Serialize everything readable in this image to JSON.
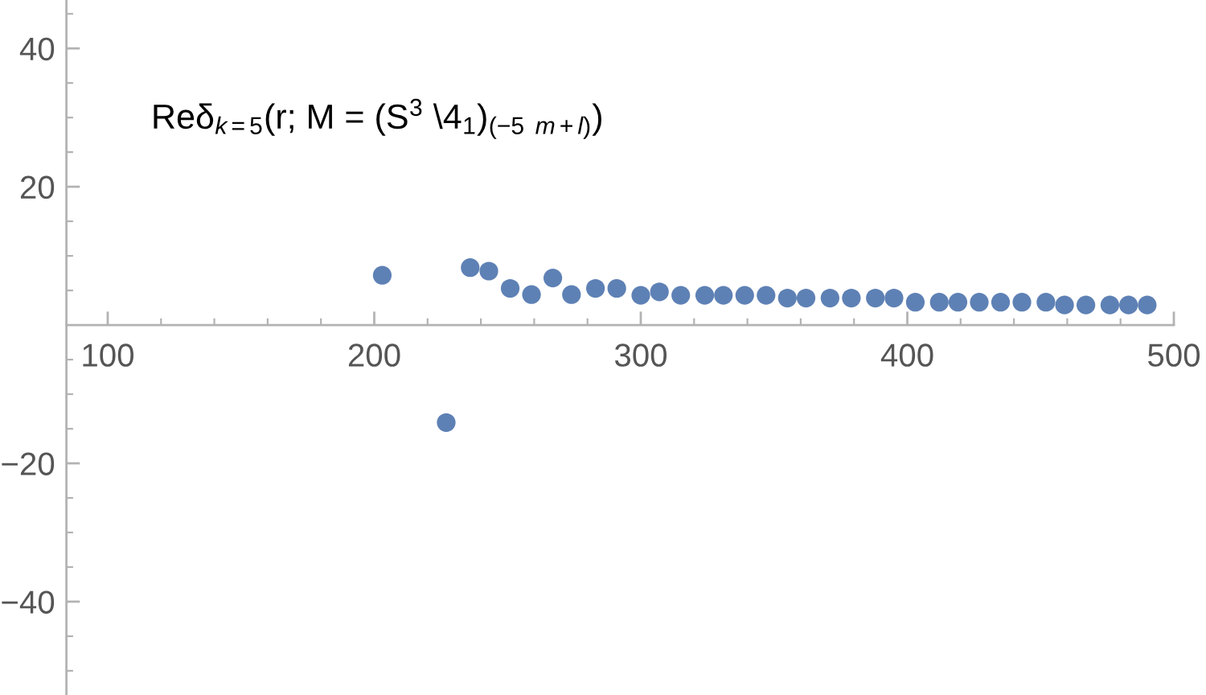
{
  "chart_data": {
    "type": "scatter",
    "annotations": [
      "Reδ$_{k=5}$(r; M = (S$^{3}$ \\4$_{1}$)$_{(−5}$ $_{m+l)}$)"
    ],
    "x": [
      203,
      227,
      236,
      243,
      251,
      259,
      267,
      274,
      283,
      291,
      300,
      307,
      315,
      324,
      331,
      339,
      347,
      355,
      362,
      371,
      379,
      388,
      395,
      403,
      412,
      419,
      427,
      435,
      443,
      452,
      459,
      467,
      476,
      483,
      490
    ],
    "values": [
      7.2,
      -14.1,
      8.3,
      7.8,
      5.3,
      4.4,
      6.8,
      4.4,
      5.3,
      5.3,
      4.3,
      4.8,
      4.3,
      4.3,
      4.3,
      4.3,
      4.3,
      3.9,
      3.9,
      3.9,
      3.9,
      3.9,
      3.9,
      3.3,
      3.3,
      3.3,
      3.3,
      3.3,
      3.3,
      3.3,
      2.9,
      2.9,
      2.9,
      2.9,
      2.9
    ],
    "color": "#5e81b5",
    "marker": "circle",
    "xlim": [
      84.5,
      500
    ],
    "ylim": [
      -53.5,
      47
    ],
    "xticks": [
      100,
      {
        "value": 120,
        "label": null
      },
      {
        "value": 140,
        "label": null
      },
      {
        "value": 160,
        "label": null
      },
      {
        "value": 180,
        "label": null
      },
      200,
      {
        "value": 220,
        "label": null
      },
      {
        "value": 240,
        "label": null
      },
      {
        "value": 260,
        "label": null
      },
      {
        "value": 280,
        "label": null
      },
      300,
      {
        "value": 320,
        "label": null
      },
      {
        "value": 340,
        "label": null
      },
      {
        "value": 360,
        "label": null
      },
      {
        "value": 380,
        "label": null
      },
      400,
      {
        "value": 420,
        "label": null
      },
      {
        "value": 440,
        "label": null
      },
      {
        "value": 460,
        "label": null
      },
      {
        "value": 480,
        "label": null
      },
      500
    ],
    "yticks": [
      {
        "value": -50,
        "label": null
      },
      {
        "value": -45,
        "label": null
      },
      {
        "value": -40,
        "label": "−40"
      },
      {
        "value": -35,
        "label": null
      },
      {
        "value": -30,
        "label": null
      },
      {
        "value": -25,
        "label": null
      },
      {
        "value": -20,
        "label": "−20"
      },
      {
        "value": -15,
        "label": null
      },
      {
        "value": -10,
        "label": null
      },
      {
        "value": -5,
        "label": null
      },
      {
        "value": 5,
        "label": null
      },
      {
        "value": 10,
        "label": null
      },
      {
        "value": 15,
        "label": null
      },
      20,
      {
        "value": 25,
        "label": null
      },
      {
        "value": 30,
        "label": null
      },
      {
        "value": 35,
        "label": null
      },
      40,
      {
        "value": 45,
        "label": null
      }
    ],
    "grid": false
  }
}
